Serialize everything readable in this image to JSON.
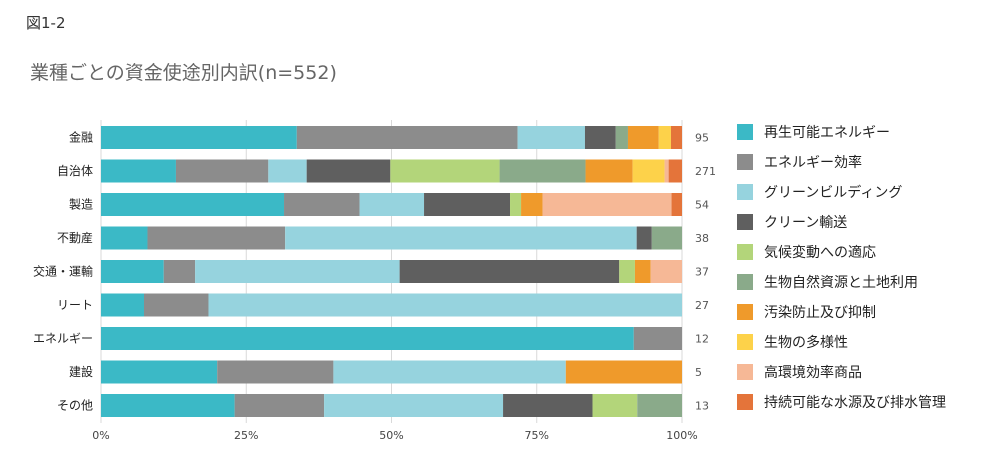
{
  "figure_label": "図1-2",
  "chart_data": {
    "type": "bar",
    "orientation": "horizontal",
    "stacked": "100%",
    "title": "業種ごとの資金使途別内訳(n=552)",
    "xlabel": "",
    "ylabel": "",
    "xlim": [
      0,
      100
    ],
    "x_ticks": [
      "0%",
      "25%",
      "50%",
      "75%",
      "100%"
    ],
    "categories": [
      "金融",
      "自治体",
      "製造",
      "不動産",
      "交通・運輸",
      "リート",
      "エネルギー",
      "建設",
      "その他"
    ],
    "counts": [
      "95",
      "271",
      "54",
      "38",
      "37",
      "27",
      "12",
      "5",
      "13"
    ],
    "legend_position": "right",
    "series": [
      {
        "name": "再生可能エネルギー",
        "color": "#3bb9c6",
        "values": [
          33.7,
          12.9,
          31.5,
          8.0,
          10.8,
          7.4,
          91.7,
          20.0,
          23.0
        ]
      },
      {
        "name": "エネルギー効率",
        "color": "#8c8c8c",
        "values": [
          38.0,
          15.9,
          13.0,
          23.7,
          5.4,
          11.1,
          8.3,
          20.0,
          15.4
        ]
      },
      {
        "name": "グリーンビルディング",
        "color": "#96d3de",
        "values": [
          11.6,
          6.6,
          11.1,
          60.5,
          35.2,
          81.5,
          0,
          40.0,
          30.8
        ]
      },
      {
        "name": "クリーン輸送",
        "color": "#5f5f5f",
        "values": [
          5.3,
          14.4,
          14.8,
          2.6,
          37.8,
          0,
          0,
          0,
          15.4
        ]
      },
      {
        "name": "気候変動への適応",
        "color": "#b3d57a",
        "values": [
          0,
          18.8,
          1.9,
          0,
          2.7,
          0,
          0,
          0,
          7.7
        ]
      },
      {
        "name": "生物自然資源と土地利用",
        "color": "#8aaa8a",
        "values": [
          2.1,
          14.8,
          0,
          5.2,
          0,
          0,
          0,
          0,
          7.7
        ]
      },
      {
        "name": "汚染防止及び抑制",
        "color": "#ef9a2b",
        "values": [
          5.3,
          8.1,
          3.7,
          0,
          2.7,
          0,
          0,
          20.0,
          0
        ]
      },
      {
        "name": "生物の多様性",
        "color": "#fdd24a",
        "values": [
          2.1,
          5.5,
          0,
          0,
          0,
          0,
          0,
          0,
          0
        ]
      },
      {
        "name": "高環境効率商品",
        "color": "#f6b896",
        "values": [
          0,
          0.7,
          22.2,
          0,
          5.4,
          0,
          0,
          0,
          0
        ]
      },
      {
        "name": "持続可能な水源及び排水管理",
        "color": "#e4743a",
        "values": [
          1.9,
          2.3,
          1.8,
          0,
          0,
          0,
          0,
          0,
          0
        ]
      }
    ]
  }
}
